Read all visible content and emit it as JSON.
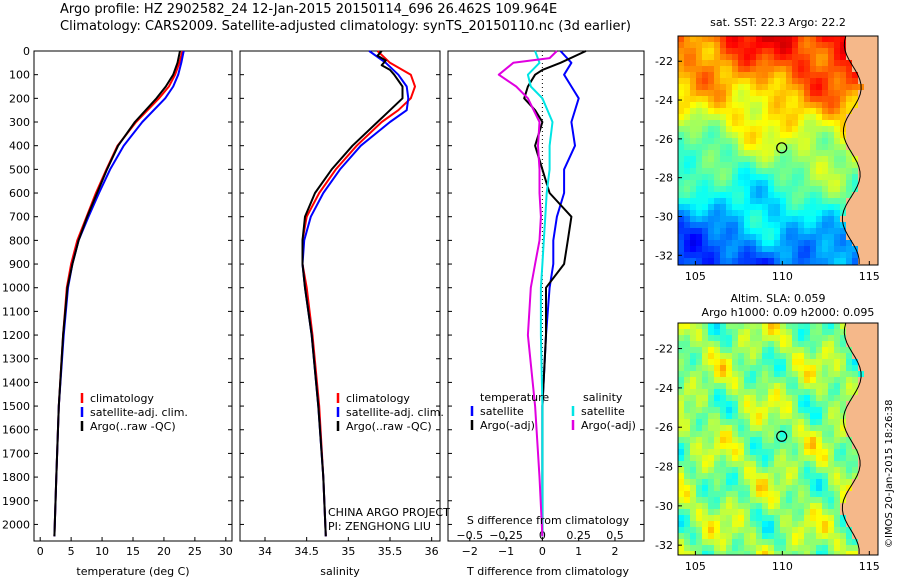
{
  "header": {
    "line1": "Argo profile: HZ 2902582_24 12-Jan-2015 20150114_696 26.462S 109.964E",
    "line2": "Climatology: CARS2009. Satellite-adjusted climatology: synTS_20150110.nc (3d earlier)"
  },
  "colors": {
    "climatology": "#ff0000",
    "satellite": "#0000ff",
    "argo": "#000000",
    "satellite_salinity": "#00e5e5",
    "argo_salinity_adj": "#e000e0",
    "land": "#f5b88a"
  },
  "stamp": "©IMOS 20-Jan-2015 18:26:38",
  "project_note": [
    "CHINA ARGO PROJECT",
    "PI: ZENGHONG LIU"
  ],
  "chart_data": [
    {
      "type": "line",
      "xlabel": "temperature (deg C)",
      "xlim": [
        -1,
        31
      ],
      "ylim": [
        2070,
        0
      ],
      "xticks": [
        0,
        5,
        10,
        15,
        20,
        25,
        30
      ],
      "legend": [
        "climatology",
        "satellite-adj. clim.",
        "Argo(..raw -QC)"
      ],
      "series": [
        {
          "name": "climatology",
          "depth": [
            0,
            50,
            100,
            150,
            200,
            300,
            400,
            500,
            600,
            700,
            800,
            900,
            1000,
            1200,
            1500,
            1800,
            2050
          ],
          "values": [
            23.0,
            22.5,
            21.8,
            20.8,
            19.2,
            15.5,
            12.5,
            10.7,
            9.0,
            7.5,
            6.0,
            5.0,
            4.3,
            3.7,
            3.0,
            2.6,
            2.3
          ]
        },
        {
          "name": "satellite-adj. clim.",
          "depth": [
            0,
            50,
            100,
            150,
            200,
            300,
            400,
            500,
            600,
            700,
            800,
            900,
            1000,
            1200,
            1500,
            1800,
            2050
          ],
          "values": [
            23.2,
            22.8,
            22.3,
            21.5,
            20.2,
            16.5,
            13.5,
            11.3,
            9.5,
            7.8,
            6.2,
            5.2,
            4.5,
            3.8,
            3.0,
            2.6,
            2.3
          ]
        },
        {
          "name": "Argo(..raw -QC)",
          "depth": [
            0,
            50,
            100,
            150,
            200,
            300,
            400,
            500,
            600,
            700,
            800,
            900,
            1000,
            1200,
            1500,
            1800,
            2050
          ],
          "values": [
            22.6,
            22.2,
            21.5,
            20.3,
            18.8,
            15.3,
            12.6,
            10.8,
            9.2,
            7.6,
            6.2,
            5.2,
            4.4,
            3.7,
            3.0,
            2.6,
            2.3
          ]
        }
      ]
    },
    {
      "type": "line",
      "xlabel": "salinity",
      "xlim": [
        33.7,
        36.1
      ],
      "ylim": [
        2070,
        0
      ],
      "xticks": [
        34,
        34.5,
        35,
        35.5,
        36
      ],
      "legend": [
        "climatology",
        "satellite-adj. clim.",
        "Argo(..raw -QC)"
      ],
      "series": [
        {
          "name": "climatology",
          "depth": [
            0,
            50,
            100,
            150,
            200,
            250,
            300,
            400,
            500,
            600,
            700,
            800,
            900,
            1000,
            1200,
            1500,
            1800,
            2050
          ],
          "values": [
            35.35,
            35.5,
            35.75,
            35.8,
            35.75,
            35.6,
            35.4,
            35.1,
            34.85,
            34.65,
            34.5,
            34.45,
            34.45,
            34.5,
            34.57,
            34.65,
            34.7,
            34.73
          ]
        },
        {
          "name": "satellite-adj. clim.",
          "depth": [
            0,
            50,
            100,
            150,
            200,
            250,
            300,
            400,
            500,
            600,
            700,
            800,
            900,
            1000,
            1200,
            1500,
            1800,
            2050
          ],
          "values": [
            35.25,
            35.45,
            35.6,
            35.7,
            35.72,
            35.7,
            35.5,
            35.15,
            34.9,
            34.7,
            34.55,
            34.47,
            34.45,
            34.48,
            34.56,
            34.64,
            34.7,
            34.73
          ]
        },
        {
          "name": "Argo(..raw -QC)",
          "depth": [
            0,
            20,
            40,
            60,
            80,
            100,
            150,
            200,
            250,
            300,
            400,
            500,
            600,
            700,
            800,
            900,
            1000,
            1200,
            1500,
            1800,
            2050
          ],
          "values": [
            35.4,
            35.35,
            35.45,
            35.4,
            35.5,
            35.55,
            35.65,
            35.65,
            35.5,
            35.35,
            35.05,
            34.8,
            34.6,
            34.48,
            34.45,
            34.45,
            34.48,
            34.56,
            34.64,
            34.7,
            34.73
          ]
        }
      ]
    },
    {
      "type": "line",
      "xlabel": "T difference from climatology",
      "xlabel_top": "S difference from climatology",
      "xlim_T": [
        -2.6,
        2.8
      ],
      "xticks_T": [
        -2,
        -1,
        0,
        1,
        2
      ],
      "xticks_S": [
        {
          "value": -0.5,
          "label": "−0.5"
        },
        {
          "value": -0.25,
          "label": "−0.25"
        },
        {
          "value": 0,
          "label": "0"
        },
        {
          "value": 0.25,
          "label": "0.25"
        },
        {
          "value": 0.5,
          "label": "0.5"
        }
      ],
      "s_scale": 4,
      "ylim": [
        2070,
        0
      ],
      "legend_temperature": {
        "title": "temperature",
        "items": [
          "satellite",
          "Argo(-adj)"
        ]
      },
      "legend_salinity": {
        "title": "salinity",
        "items": [
          "satellite",
          "Argo(-adj)"
        ]
      },
      "series": [
        {
          "name": "satellite",
          "variable": "T",
          "depth": [
            0,
            50,
            100,
            150,
            200,
            300,
            400,
            500,
            600,
            700,
            800,
            900,
            1000,
            1200,
            1500,
            1800,
            2050
          ],
          "values": [
            0.5,
            0.8,
            0.6,
            0.8,
            1.0,
            0.8,
            0.9,
            0.6,
            0.6,
            0.4,
            0.3,
            0.3,
            0.2,
            0.1,
            0.0,
            0.0,
            0.0
          ]
        },
        {
          "name": "Argo(-adj)",
          "variable": "T",
          "depth": [
            0,
            50,
            80,
            100,
            150,
            200,
            250,
            300,
            400,
            500,
            600,
            700,
            800,
            900,
            1000,
            1200,
            1500,
            1800,
            2050
          ],
          "values": [
            1.2,
            0.5,
            0.0,
            -0.2,
            -0.4,
            -0.5,
            -0.2,
            0.0,
            -0.2,
            0.0,
            0.2,
            0.8,
            0.7,
            0.6,
            0.1,
            0.1,
            0.0,
            0.0,
            0.0
          ]
        },
        {
          "name": "satellite",
          "variable": "S",
          "depth": [
            0,
            50,
            100,
            150,
            200,
            300,
            400,
            500,
            600,
            700,
            800,
            900,
            1000,
            1200,
            1500,
            1800,
            2050
          ],
          "values": [
            -0.05,
            -0.02,
            -0.1,
            -0.08,
            0.0,
            0.07,
            0.05,
            0.05,
            0.03,
            0.02,
            0.01,
            0.0,
            -0.01,
            -0.01,
            0.0,
            0.0,
            0.0
          ]
        },
        {
          "name": "Argo(-adj)",
          "variable": "S",
          "depth": [
            0,
            30,
            50,
            100,
            150,
            200,
            300,
            400,
            500,
            600,
            700,
            800,
            900,
            1000,
            1200,
            1500,
            1800,
            2050
          ],
          "values": [
            0.1,
            0.05,
            -0.2,
            -0.3,
            -0.18,
            -0.1,
            -0.02,
            -0.03,
            -0.02,
            -0.02,
            -0.01,
            -0.02,
            -0.05,
            -0.08,
            -0.1,
            -0.05,
            -0.02,
            0.0
          ]
        }
      ]
    },
    {
      "type": "heatmap",
      "title": "sat. SST: 22.3 Argo: 22.2",
      "xticks": [
        105,
        110,
        115
      ],
      "yticks": [
        -22,
        -24,
        -26,
        -28,
        -30,
        -32
      ],
      "xlim": [
        104,
        115.5
      ],
      "ylim": [
        -32.5,
        -20.7
      ],
      "argo_position": {
        "lon": 109.964,
        "lat": -26.462
      }
    },
    {
      "type": "heatmap",
      "title_lines": [
        "Altim. SLA: 0.059",
        "Argo h1000: 0.09 h2000: 0.095"
      ],
      "xticks": [
        105,
        110,
        115
      ],
      "yticks": [
        -22,
        -24,
        -26,
        -28,
        -30,
        -32
      ],
      "xlim": [
        104,
        115.5
      ],
      "ylim": [
        -32.5,
        -20.7
      ],
      "argo_position": {
        "lon": 109.964,
        "lat": -26.462
      }
    }
  ]
}
